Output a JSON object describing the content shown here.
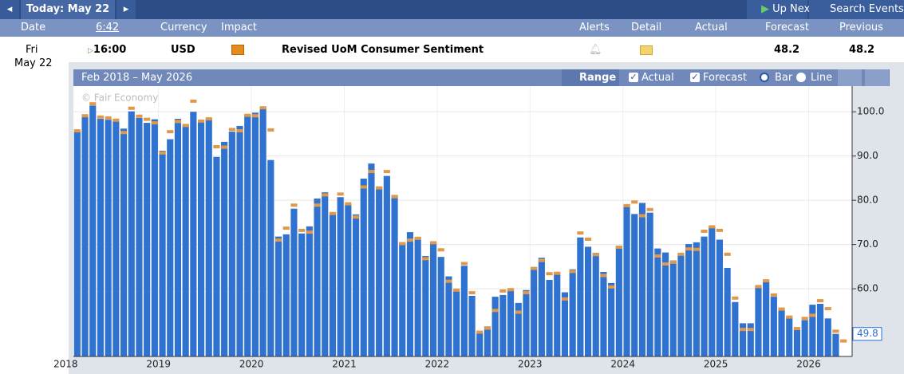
{
  "toolbar": {
    "today": "Today: May 22",
    "up_next": "Up Next",
    "search": "Search Events"
  },
  "columns": [
    "Date",
    "6:42",
    "Currency",
    "Impact",
    "Alerts",
    "Detail",
    "Actual",
    "Forecast",
    "Previous"
  ],
  "event": {
    "day": "Fri",
    "date": "May 22",
    "time": "16:00",
    "currency": "USD",
    "title": "Revised UoM Consumer Sentiment",
    "forecast": "48.2",
    "previous": "48.2"
  },
  "panel": {
    "range_text": "Feb 2018 – May 2026",
    "range_button": "Range",
    "bar": "Bar",
    "line": "Line",
    "watermark": "© Fair Economy"
  },
  "chart_data": {
    "type": "bar",
    "year_labels": [
      "2018",
      "2019",
      "2020",
      "2021",
      "2022",
      "2023",
      "2024",
      "2025",
      "2026"
    ],
    "ylim": [
      44.7,
      105.8
    ],
    "yticks": [
      {
        "value": 60,
        "label": "60.0"
      },
      {
        "value": 70,
        "label": "70.0"
      },
      {
        "value": 80,
        "label": "80.0"
      },
      {
        "value": 90,
        "label": "90.0"
      },
      {
        "value": 100,
        "label": "100.0"
      }
    ],
    "grid": true,
    "series": [
      {
        "name": "Actual",
        "color": "#2f72d0",
        "values": [
          95.5,
          98.8,
          101.4,
          98.4,
          98.2,
          97.9,
          96.2,
          100.1,
          98.6,
          97.5,
          98.3,
          91.2,
          93.8,
          98.4,
          97.2,
          100.0,
          98.2,
          98.4,
          89.8,
          93.2,
          95.5,
          96.8,
          99.3,
          99.8,
          101.0,
          89.1,
          71.8,
          72.3,
          78.1,
          72.5,
          74.1,
          80.4,
          81.8,
          76.9,
          80.7,
          79.0,
          76.8,
          84.9,
          88.3,
          82.9,
          85.5,
          81.2,
          70.3,
          72.8,
          71.7,
          67.4,
          70.6,
          67.2,
          62.8,
          59.4,
          65.2,
          58.4,
          50.0,
          51.5,
          58.2,
          58.6,
          59.9,
          56.8,
          59.7,
          64.9,
          67.0,
          62.0,
          63.5,
          59.2,
          64.4,
          71.6,
          69.5,
          68.1,
          63.8,
          61.3,
          69.7,
          79.0,
          76.9,
          79.4,
          77.2,
          69.1,
          68.2,
          66.4,
          67.9,
          70.1,
          70.5,
          71.8,
          74.0,
          71.1,
          64.7,
          57.0,
          52.2,
          52.2,
          60.7,
          61.7,
          58.2,
          55.1,
          53.6,
          51.0,
          52.9,
          56.4,
          56.6,
          53.3,
          49.8,
          null
        ]
      },
      {
        "name": "Forecast",
        "color": "#e0994a",
        "values": [
          95.7,
          99.1,
          101.8,
          98.8,
          98.6,
          98.1,
          95.3,
          100.8,
          99.0,
          98.3,
          97.5,
          90.7,
          95.5,
          97.8,
          96.9,
          102.4,
          97.9,
          98.4,
          92.1,
          92.0,
          96.0,
          95.7,
          99.2,
          99.1,
          100.9,
          95.9,
          71.0,
          73.7,
          78.9,
          73.2,
          72.8,
          78.9,
          81.2,
          77.0,
          81.4,
          79.2,
          76.2,
          83.0,
          86.5,
          82.8,
          86.5,
          80.8,
          70.2,
          71.0,
          71.4,
          66.8,
          70.4,
          68.8,
          61.7,
          59.7,
          65.7,
          59.1,
          50.2,
          51.1,
          55.1,
          59.5,
          59.8,
          54.7,
          59.1,
          64.6,
          66.4,
          63.4,
          63.5,
          57.7,
          63.9,
          72.6,
          71.2,
          67.7,
          63.0,
          60.4,
          69.4,
          78.8,
          79.6,
          76.5,
          77.9,
          67.4,
          65.6,
          66.0,
          67.8,
          69.0,
          68.9,
          73.0,
          74.0,
          73.2,
          67.8,
          57.9,
          50.8,
          50.8,
          60.5,
          61.8,
          58.6,
          55.4,
          53.6,
          51.0,
          53.3,
          54.0,
          57.3,
          55.5,
          50.4,
          48.2
        ]
      }
    ]
  }
}
